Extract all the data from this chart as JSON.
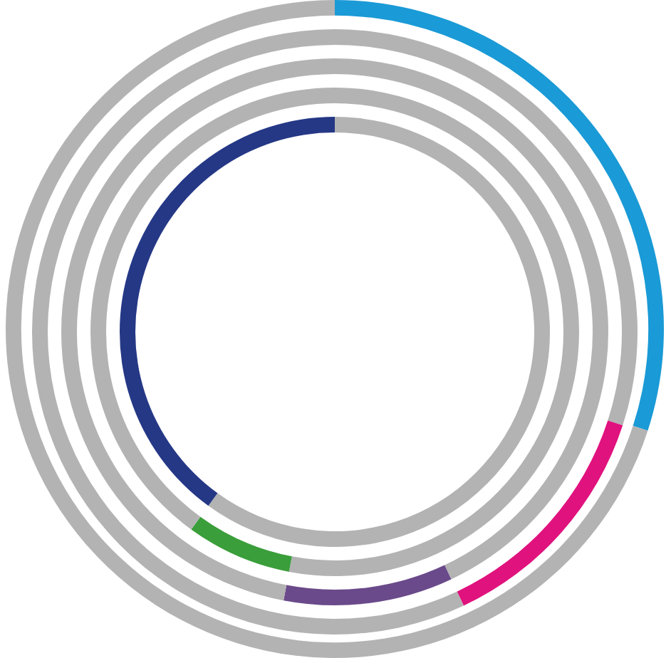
{
  "chart_data": [
    {
      "type": "donut",
      "categories": [
        null,
        null
      ],
      "values": [
        30,
        70
      ],
      "colors": [
        "#1a9ad6",
        "#b3b3b3"
      ]
    },
    {
      "type": "donut",
      "categories": [
        null,
        null,
        null
      ],
      "values": [
        30,
        13,
        57
      ],
      "colors": [
        "#b3b3b3",
        "#e0127e",
        "#b3b3b3"
      ]
    },
    {
      "type": "donut",
      "categories": [
        null,
        null,
        null
      ],
      "values": [
        43,
        10,
        47
      ],
      "colors": [
        "#b3b3b3",
        "#6a4a8a",
        "#b3b3b3"
      ]
    },
    {
      "type": "donut",
      "categories": [
        null,
        null,
        null
      ],
      "values": [
        53,
        7,
        40
      ],
      "colors": [
        "#b3b3b3",
        "#3a9e3a",
        "#b3b3b3"
      ]
    },
    {
      "type": "donut",
      "categories": [
        null,
        null
      ],
      "values": [
        60,
        40
      ],
      "colors": [
        "#b3b3b3",
        "#253886"
      ]
    }
  ]
}
